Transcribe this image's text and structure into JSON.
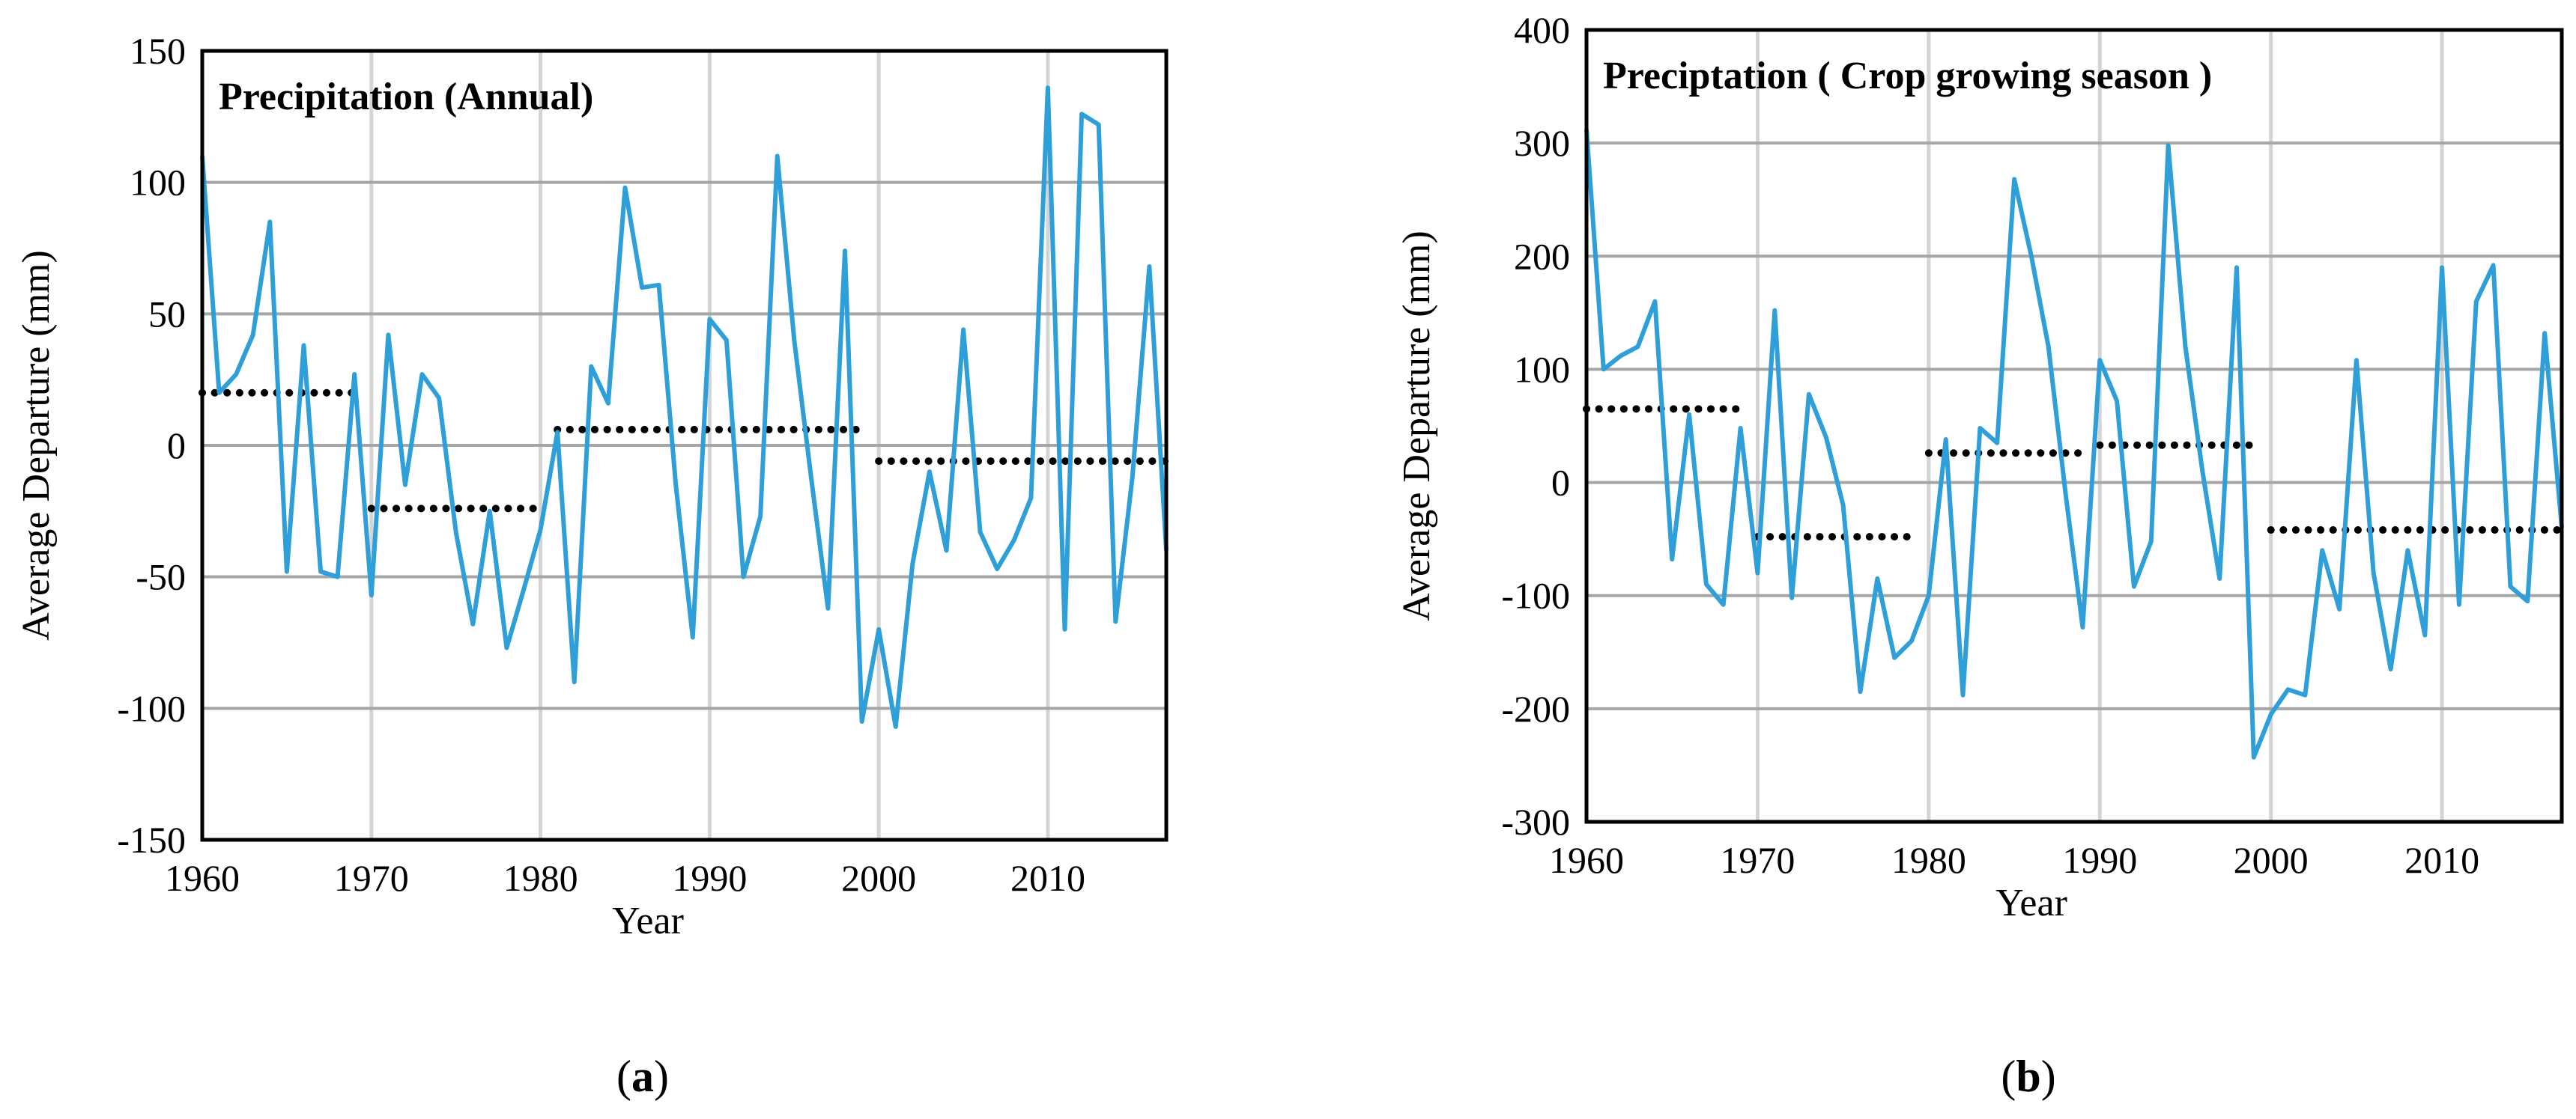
{
  "chart_data": [
    {
      "type": "line",
      "panel_label_open": "(",
      "panel_label": "a",
      "panel_label_close": ")",
      "title": "Precipitation (Annual)",
      "xlabel": "Year",
      "ylabel": "Average Departure (mm)",
      "xlim": [
        1960,
        2017
      ],
      "ylim": [
        -150,
        150
      ],
      "xticks": [
        1960,
        1970,
        1980,
        1990,
        2000,
        2010
      ],
      "yticks": [
        -150,
        -100,
        -50,
        0,
        50,
        100,
        150
      ],
      "vertical_gridlines": [
        1970,
        1980,
        1990,
        2000,
        2010
      ],
      "horizontal_gridlines": [
        -100,
        -50,
        0,
        50,
        100
      ],
      "line_color": "#2e9fd9",
      "mean_color": "#000000",
      "x": [
        1960,
        1961,
        1962,
        1963,
        1964,
        1965,
        1966,
        1967,
        1968,
        1969,
        1970,
        1971,
        1972,
        1973,
        1974,
        1975,
        1976,
        1977,
        1978,
        1979,
        1980,
        1981,
        1982,
        1983,
        1984,
        1985,
        1986,
        1987,
        1988,
        1989,
        1990,
        1991,
        1992,
        1993,
        1994,
        1995,
        1996,
        1997,
        1998,
        1999,
        2000,
        2001,
        2002,
        2003,
        2004,
        2005,
        2006,
        2007,
        2008,
        2009,
        2010,
        2011,
        2012,
        2013,
        2014,
        2015,
        2016,
        2017
      ],
      "values": [
        110,
        20,
        27,
        42,
        85,
        -48,
        38,
        -48,
        -50,
        27,
        -57,
        42,
        -15,
        27,
        18,
        -33,
        -68,
        -25,
        -77,
        -55,
        -32,
        5,
        -90,
        30,
        16,
        98,
        60,
        61,
        -15,
        -73,
        48,
        40,
        -50,
        -27,
        110,
        40,
        -12,
        -62,
        74,
        -105,
        -70,
        -107,
        -45,
        -10,
        -40,
        44,
        -33,
        -47,
        -36,
        -20,
        136,
        -70,
        126,
        122,
        -67,
        -12,
        68,
        -40
      ],
      "period_means": [
        {
          "start": 1960,
          "end": 1969,
          "value": 20
        },
        {
          "start": 1970,
          "end": 1980,
          "value": -24
        },
        {
          "start": 1981,
          "end": 1999,
          "value": 6
        },
        {
          "start": 2000,
          "end": 2017,
          "value": -6
        }
      ]
    },
    {
      "type": "line",
      "panel_label_open": "(",
      "panel_label": "b",
      "panel_label_close": ")",
      "title": "Preciptation ( Crop growing season )",
      "xlabel": "Year",
      "ylabel": "Average Departure (mm)",
      "xlim": [
        1960,
        2017
      ],
      "ylim": [
        -300,
        400
      ],
      "xticks": [
        1960,
        1970,
        1980,
        1990,
        2000,
        2010
      ],
      "yticks": [
        -300,
        -200,
        -100,
        0,
        100,
        200,
        300,
        400
      ],
      "vertical_gridlines": [
        1970,
        1980,
        1990,
        2000,
        2010
      ],
      "horizontal_gridlines": [
        -200,
        -100,
        0,
        100,
        200,
        300
      ],
      "line_color": "#2e9fd9",
      "mean_color": "#000000",
      "x": [
        1960,
        1961,
        1962,
        1963,
        1964,
        1965,
        1966,
        1967,
        1968,
        1969,
        1970,
        1971,
        1972,
        1973,
        1974,
        1975,
        1976,
        1977,
        1978,
        1979,
        1980,
        1981,
        1982,
        1983,
        1984,
        1985,
        1986,
        1987,
        1988,
        1989,
        1990,
        1991,
        1992,
        1993,
        1994,
        1995,
        1996,
        1997,
        1998,
        1999,
        2000,
        2001,
        2002,
        2003,
        2004,
        2005,
        2006,
        2007,
        2008,
        2009,
        2010,
        2011,
        2012,
        2013,
        2014,
        2015,
        2016,
        2017
      ],
      "values": [
        312,
        100,
        112,
        120,
        160,
        -68,
        60,
        -90,
        -108,
        48,
        -80,
        152,
        -102,
        78,
        40,
        -20,
        -185,
        -85,
        -155,
        -140,
        -100,
        38,
        -188,
        48,
        35,
        268,
        200,
        120,
        -10,
        -128,
        108,
        72,
        -92,
        -52,
        298,
        120,
        10,
        -85,
        190,
        -243,
        -205,
        -183,
        -188,
        -60,
        -112,
        108,
        -80,
        -165,
        -60,
        -135,
        190,
        -108,
        160,
        192,
        -92,
        -105,
        132,
        -40
      ],
      "period_means": [
        {
          "start": 1960,
          "end": 1969,
          "value": 65
        },
        {
          "start": 1970,
          "end": 1979,
          "value": -48
        },
        {
          "start": 1980,
          "end": 1989,
          "value": 26
        },
        {
          "start": 1990,
          "end": 1999,
          "value": 33
        },
        {
          "start": 2000,
          "end": 2017,
          "value": -42
        }
      ]
    }
  ]
}
